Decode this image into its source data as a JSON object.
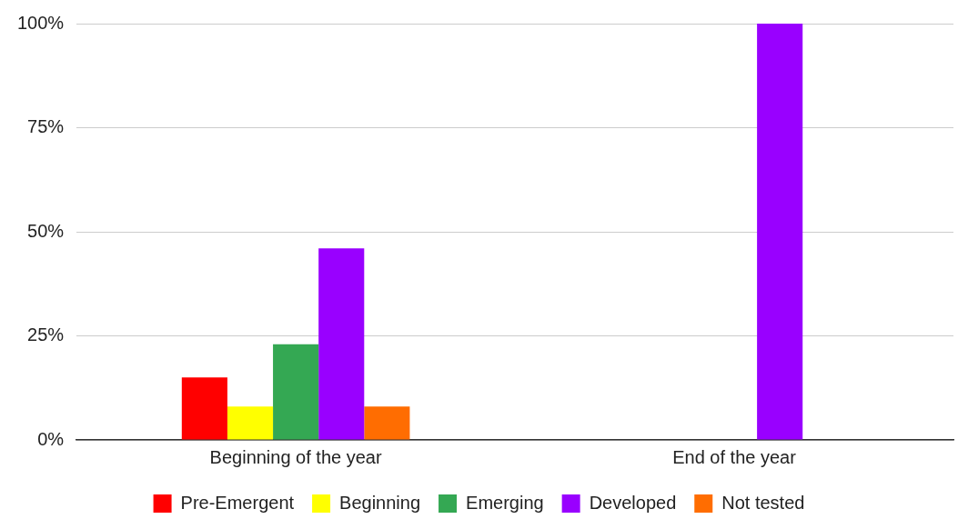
{
  "chart_data": {
    "type": "bar",
    "categories": [
      "Beginning of the year",
      "End of the year"
    ],
    "series": [
      {
        "name": "Pre-Emergent",
        "color": "#ff0000",
        "values": [
          15,
          0
        ]
      },
      {
        "name": "Beginning",
        "color": "#ffff00",
        "values": [
          8,
          0
        ]
      },
      {
        "name": "Emerging",
        "color": "#34a853",
        "values": [
          23,
          0
        ]
      },
      {
        "name": "Developed",
        "color": "#9900ff",
        "values": [
          46,
          100
        ]
      },
      {
        "name": "Not tested",
        "color": "#ff6d01",
        "values": [
          8,
          0
        ]
      }
    ],
    "ylim": [
      0,
      100
    ],
    "yticks": [
      {
        "value": 0,
        "label": "0%"
      },
      {
        "value": 25,
        "label": "25%"
      },
      {
        "value": 50,
        "label": "50%"
      },
      {
        "value": 75,
        "label": "75%"
      },
      {
        "value": 100,
        "label": "100%"
      }
    ],
    "grid": "y",
    "legend": "bottom"
  }
}
